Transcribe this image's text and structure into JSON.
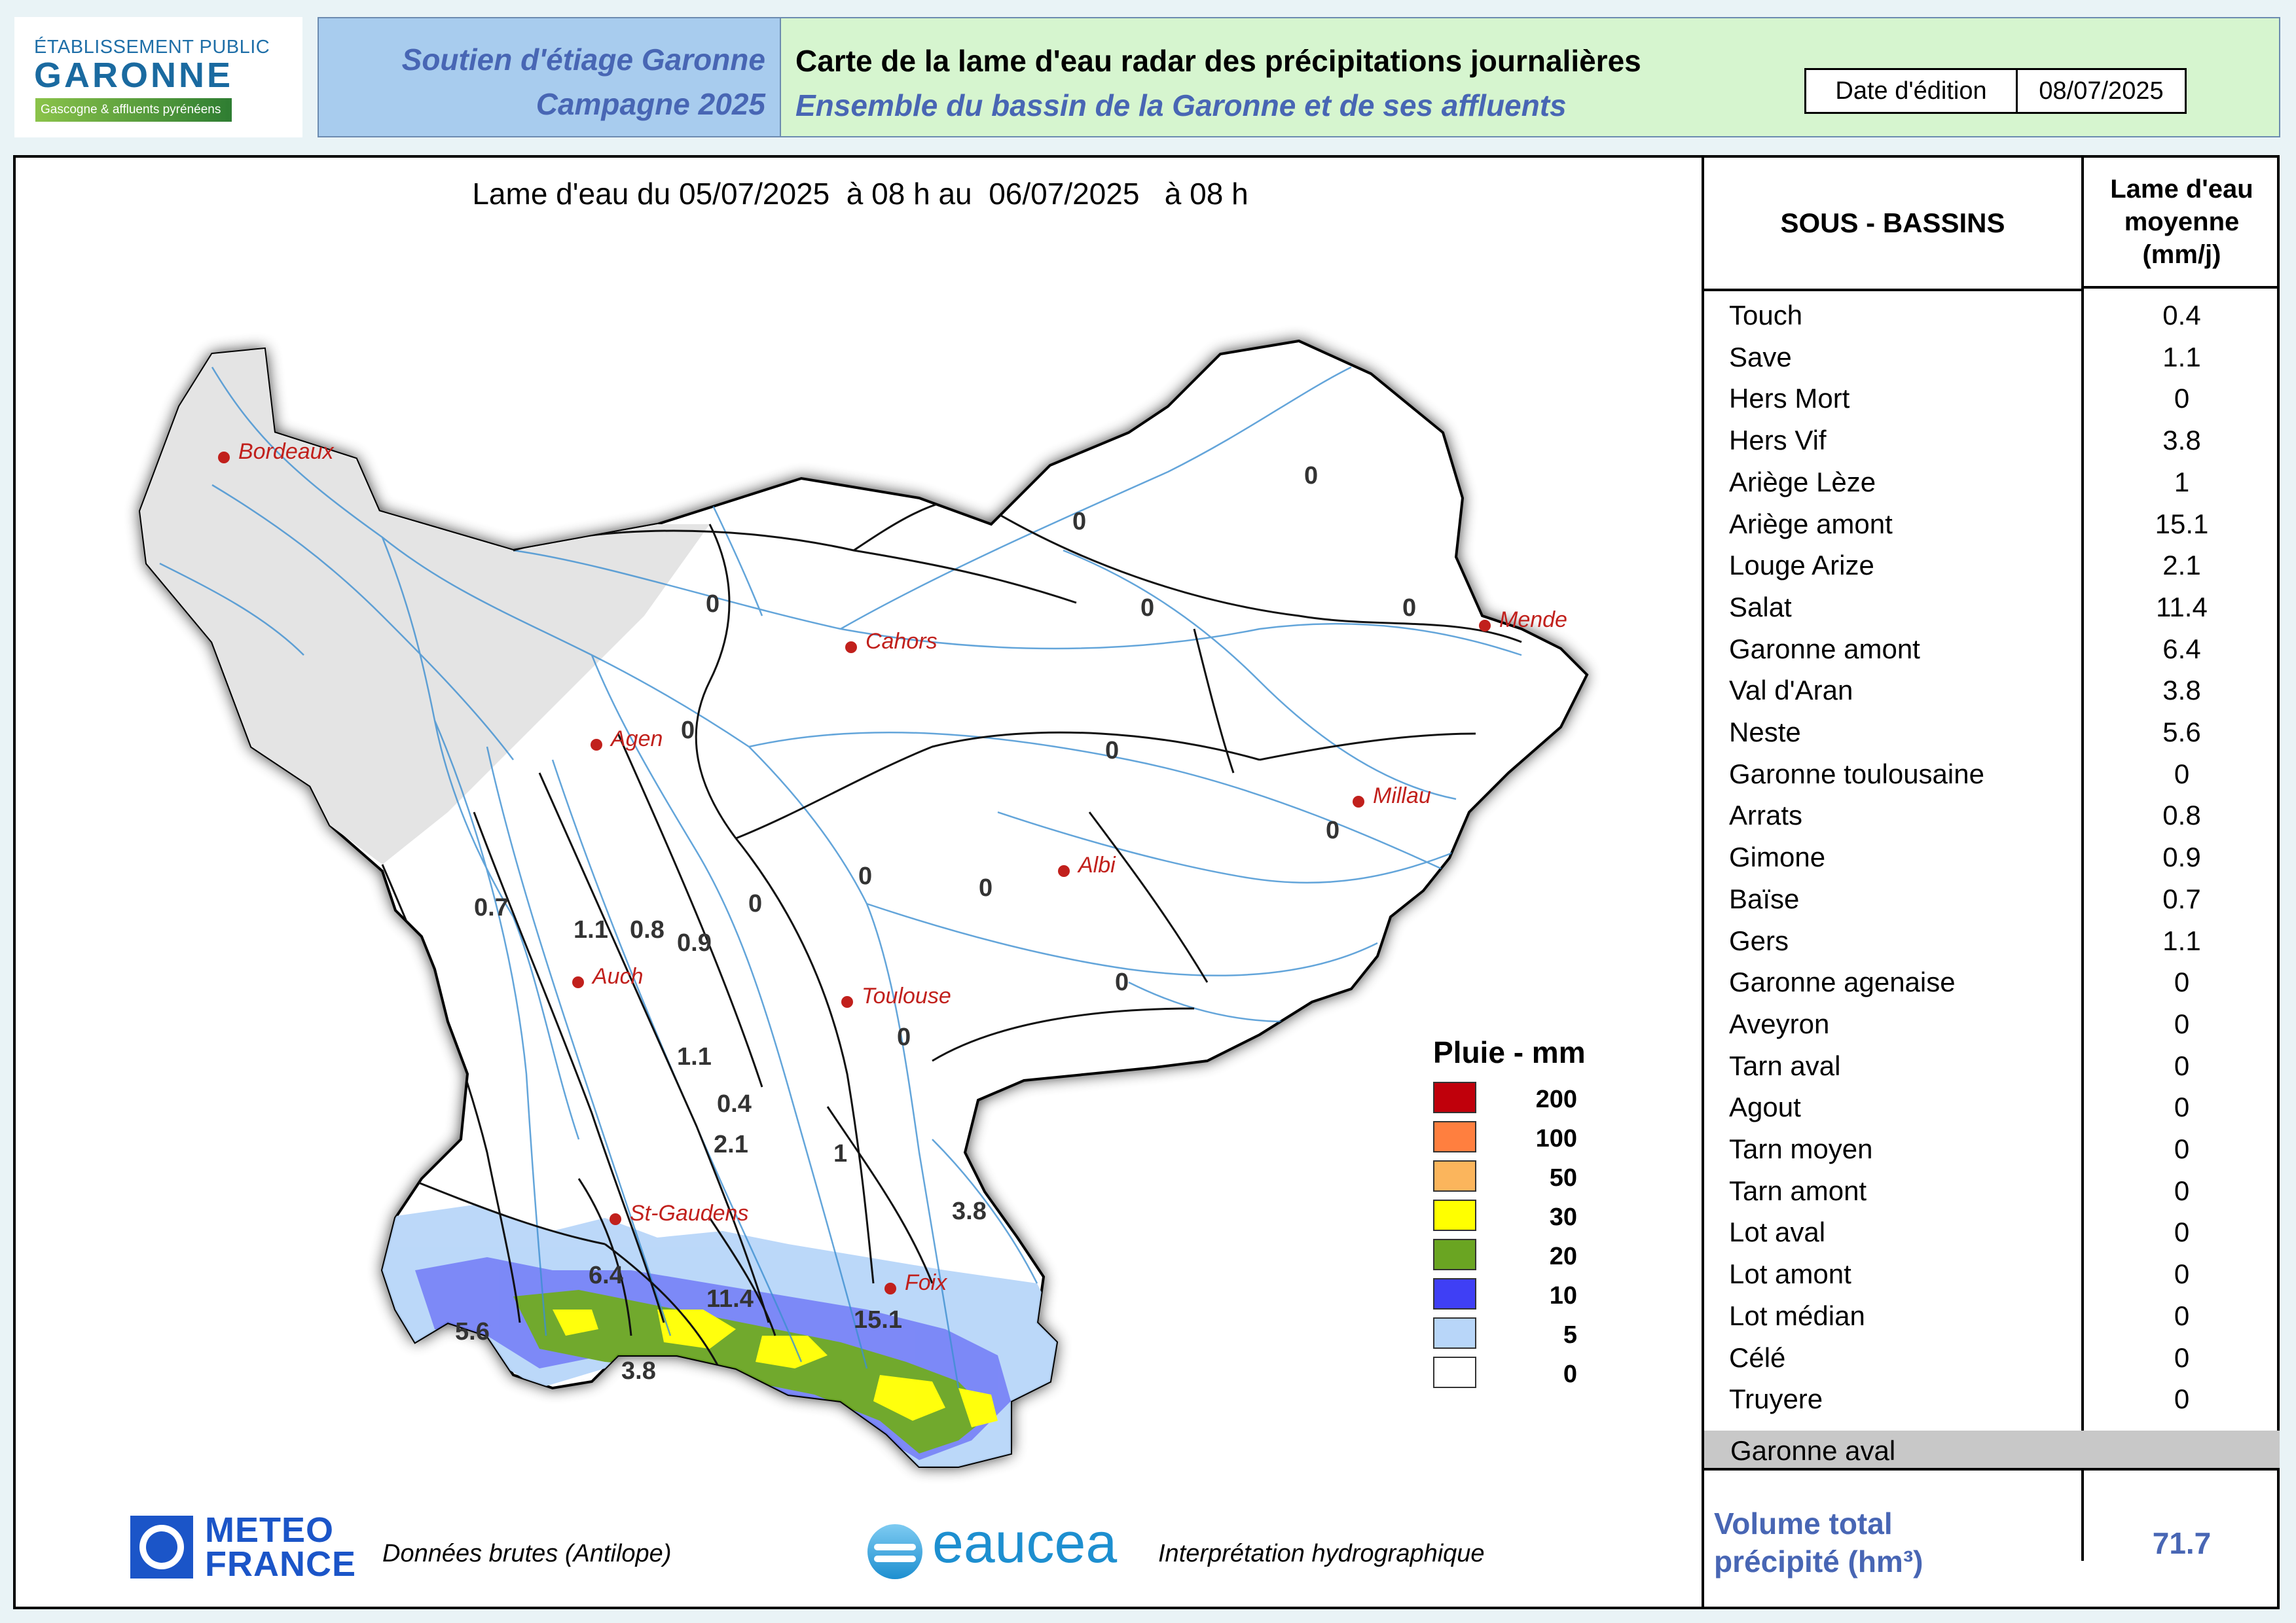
{
  "logo": {
    "line1": "ÉTABLISSEMENT PUBLIC",
    "line2": "GARONNE",
    "line3": "Gascogne & affluents pyrénéens"
  },
  "header": {
    "left_line1": "Soutien d'étiage Garonne",
    "left_line2": "Campagne 2025",
    "title": "Carte de la lame d'eau radar des précipitations journalières",
    "subtitle": "Ensemble du bassin de la Garonne et de ses affluents",
    "date_label": "Date d'édition",
    "date_value": "08/07/2025"
  },
  "map_title": "Lame d'eau du 05/07/2025  à 08 h au  06/07/2025   à 08 h",
  "cities": [
    "Bordeaux",
    "Cahors",
    "Agen",
    "Mende",
    "Millau",
    "Albi",
    "Auch",
    "Toulouse",
    "St-Gaudens",
    "Foix"
  ],
  "map_values": [
    "0",
    "0",
    "0",
    "0",
    "0",
    "0",
    "0",
    "0",
    "0",
    "0",
    "0",
    "0",
    "0",
    "0.7",
    "1.1",
    "0.8",
    "0.9",
    "1.1",
    "0.4",
    "2.1",
    "1",
    "3.8",
    "6.4",
    "11.4",
    "15.1",
    "5.6",
    "3.8"
  ],
  "legend": {
    "title": "Pluie - mm",
    "items": [
      {
        "label": "200",
        "color": "#c0000b"
      },
      {
        "label": "100",
        "color": "#ff7f3f"
      },
      {
        "label": "50",
        "color": "#fbb55c"
      },
      {
        "label": "30",
        "color": "#ffff00"
      },
      {
        "label": "20",
        "color": "#6aa522"
      },
      {
        "label": "10",
        "color": "#3f3ff5"
      },
      {
        "label": "5",
        "color": "#b8d6f9"
      },
      {
        "label": "0",
        "color": "#ffffff"
      }
    ]
  },
  "table": {
    "col1": "SOUS - BASSINS",
    "col2_l1": "Lame d'eau",
    "col2_l2": "moyenne",
    "col2_l3": "(mm/j)",
    "rows": [
      {
        "name": "Touch",
        "value": "0.4"
      },
      {
        "name": "Save",
        "value": "1.1"
      },
      {
        "name": "Hers Mort",
        "value": "0"
      },
      {
        "name": "Hers Vif",
        "value": "3.8"
      },
      {
        "name": "Ariège Lèze",
        "value": "1"
      },
      {
        "name": "Ariège amont",
        "value": "15.1"
      },
      {
        "name": "Louge Arize",
        "value": "2.1"
      },
      {
        "name": "Salat",
        "value": "11.4"
      },
      {
        "name": "Garonne amont",
        "value": "6.4"
      },
      {
        "name": "Val d'Aran",
        "value": "3.8"
      },
      {
        "name": "Neste",
        "value": "5.6"
      },
      {
        "name": "Garonne toulousaine",
        "value": "0"
      },
      {
        "name": "Arrats",
        "value": "0.8"
      },
      {
        "name": "Gimone",
        "value": "0.9"
      },
      {
        "name": "Baïse",
        "value": "0.7"
      },
      {
        "name": "Gers",
        "value": "1.1"
      },
      {
        "name": "Garonne agenaise",
        "value": "0"
      },
      {
        "name": "Aveyron",
        "value": "0"
      },
      {
        "name": "Tarn aval",
        "value": "0"
      },
      {
        "name": "Agout",
        "value": "0"
      },
      {
        "name": "Tarn moyen",
        "value": "0"
      },
      {
        "name": "Tarn amont",
        "value": "0"
      },
      {
        "name": "Lot aval",
        "value": "0"
      },
      {
        "name": "Lot amont",
        "value": "0"
      },
      {
        "name": "Lot médian",
        "value": "0"
      },
      {
        "name": "Célé",
        "value": "0"
      },
      {
        "name": "Truyere",
        "value": "0"
      }
    ],
    "aval_label": "Garonne aval",
    "volume_l1": "Volume total",
    "volume_l2": "précipité (hm³)",
    "volume_value": "71.7"
  },
  "footer": {
    "mf_line1": "METEO",
    "mf_line2": "FRANCE",
    "credit1": "Données brutes (Antilope)",
    "eaucea": "eaucea",
    "credit2": "Interprétation hydrographique"
  }
}
